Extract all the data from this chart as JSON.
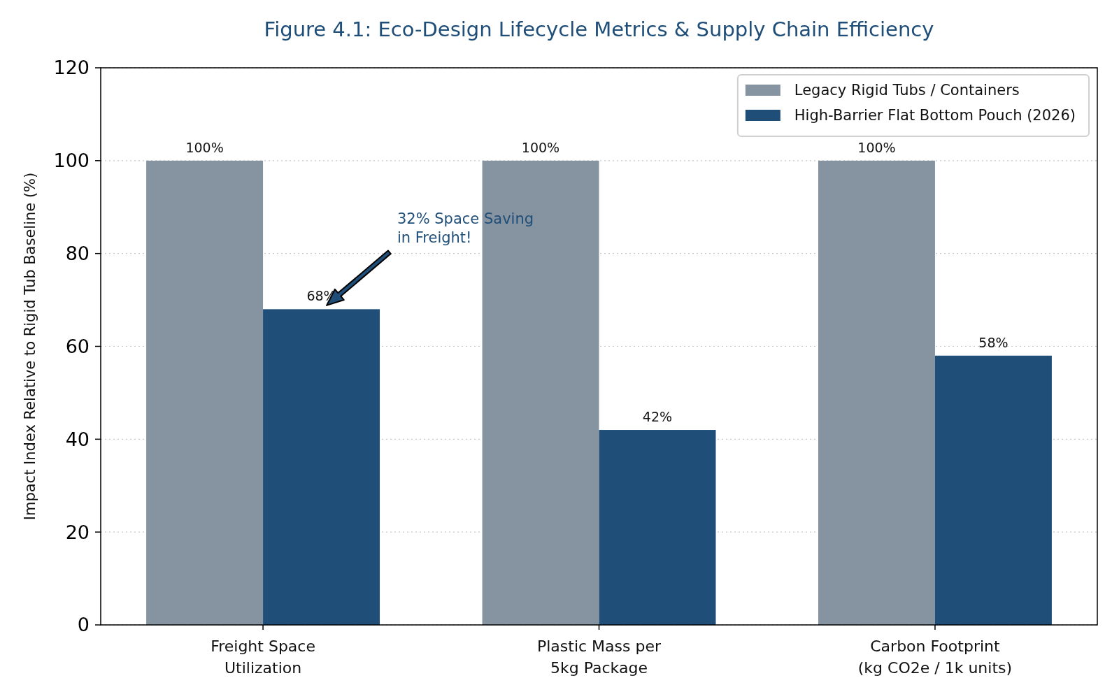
{
  "chart_data": {
    "type": "bar",
    "title": "Figure 4.1: Eco-Design Lifecycle Metrics & Supply Chain Efficiency",
    "ylabel": "Impact Index Relative to Rigid Tub Baseline (%)",
    "categories": [
      "Freight Space\nUtilization",
      "Plastic Mass per\n5kg Package",
      "Carbon Footprint\n(kg CO2e / 1k units)"
    ],
    "series": [
      {
        "name": "Legacy Rigid Tubs / Containers",
        "color": "#8693a0",
        "values": [
          100,
          100,
          100
        ],
        "value_labels": [
          "100%",
          "100%",
          "100%"
        ]
      },
      {
        "name": "High-Barrier Flat Bottom Pouch (2026)",
        "color": "#1f4e79",
        "values": [
          68,
          42,
          58
        ],
        "value_labels": [
          "68%",
          "42%",
          "58%"
        ]
      }
    ],
    "ylim": [
      0,
      120
    ],
    "yticks": [
      0,
      20,
      40,
      60,
      80,
      100,
      120
    ],
    "grid": "y",
    "legend": "top right",
    "annotations": [
      "32% Space Saving\nin Freight!"
    ]
  }
}
